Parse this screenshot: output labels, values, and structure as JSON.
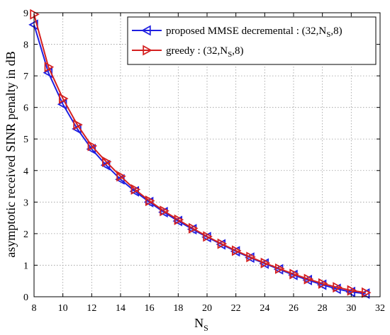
{
  "chart_data": {
    "type": "line",
    "xlabel": "N",
    "xlabel_sub": "S",
    "ylabel": "asymptotic received SINR penalty in dB",
    "xlim": [
      8,
      32
    ],
    "ylim": [
      0,
      9
    ],
    "xticks": [
      8,
      10,
      12,
      14,
      16,
      18,
      20,
      22,
      24,
      26,
      28,
      30,
      32
    ],
    "yticks": [
      0,
      1,
      2,
      3,
      4,
      5,
      6,
      7,
      8,
      9
    ],
    "grid": true,
    "legend_position": "top-right",
    "x": [
      8,
      9,
      10,
      11,
      12,
      13,
      14,
      15,
      16,
      17,
      18,
      19,
      20,
      21,
      22,
      23,
      24,
      25,
      26,
      27,
      28,
      29,
      30,
      31
    ],
    "series": [
      {
        "name": "proposed MMSE decremental : (32,N",
        "name_sub": "S",
        "name_suffix": ",8)",
        "color": "#1f1fe0",
        "marker": "triangle-left",
        "values": [
          8.62,
          7.1,
          6.1,
          5.32,
          4.68,
          4.17,
          3.72,
          3.34,
          3.0,
          2.68,
          2.4,
          2.14,
          1.89,
          1.66,
          1.44,
          1.24,
          1.05,
          0.87,
          0.69,
          0.53,
          0.38,
          0.25,
          0.15,
          0.1
        ]
      },
      {
        "name": "greedy : (32,N",
        "name_sub": "S",
        "name_suffix": ",8)",
        "color": "#d42020",
        "marker": "triangle-right",
        "values": [
          8.95,
          7.28,
          6.28,
          5.45,
          4.78,
          4.28,
          3.82,
          3.4,
          3.04,
          2.72,
          2.44,
          2.17,
          1.91,
          1.68,
          1.46,
          1.26,
          1.07,
          0.89,
          0.72,
          0.56,
          0.42,
          0.3,
          0.2,
          0.13
        ]
      }
    ]
  }
}
